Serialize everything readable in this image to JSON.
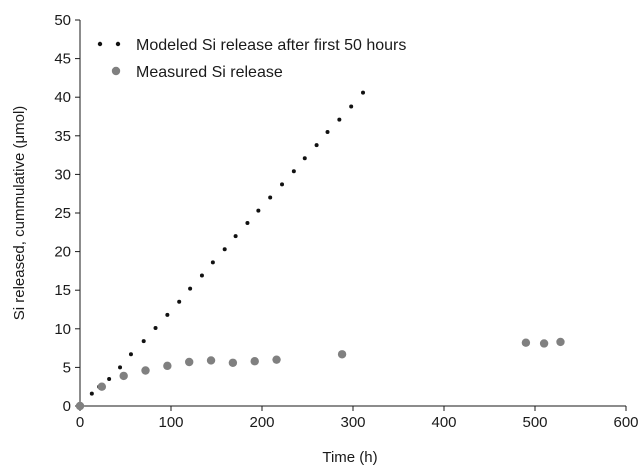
{
  "chart_data": {
    "type": "scatter",
    "title": "",
    "xlabel": "Time (h)",
    "ylabel": "Si released, cummulative (μmol)",
    "xlim": [
      0,
      600
    ],
    "ylim": [
      0,
      50
    ],
    "x_ticks": [
      "0",
      "100",
      "200",
      "300",
      "400",
      "500",
      "600"
    ],
    "y_ticks": [
      "0",
      "5",
      "10",
      "15",
      "20",
      "25",
      "30",
      "35",
      "40",
      "45",
      "50"
    ],
    "grid": false,
    "legend_position": "top-left",
    "series": [
      {
        "name": "Modeled Si release after first 50 hours",
        "marker": "small-dot",
        "color": "#111111",
        "x": [
          13,
          21,
          32,
          44,
          56,
          70,
          83,
          96,
          109,
          121,
          134,
          146,
          159,
          171,
          184,
          196,
          209,
          222,
          235,
          247,
          260,
          272,
          285,
          298,
          311
        ],
        "y": [
          1.6,
          2.5,
          3.5,
          5.0,
          6.7,
          8.4,
          10.1,
          11.8,
          13.5,
          15.2,
          16.9,
          18.6,
          20.3,
          22.0,
          23.7,
          25.3,
          27.0,
          28.7,
          30.4,
          32.1,
          33.8,
          35.5,
          37.1,
          38.8,
          40.6
        ]
      },
      {
        "name": "Measured Si release",
        "marker": "large-dot",
        "color": "#808080",
        "x": [
          0,
          24,
          48,
          72,
          96,
          120,
          144,
          168,
          192,
          216,
          288,
          490,
          510,
          528
        ],
        "y": [
          0,
          2.5,
          3.9,
          4.6,
          5.2,
          5.7,
          5.9,
          5.6,
          5.8,
          6.0,
          6.7,
          8.2,
          8.1,
          8.3
        ]
      }
    ]
  }
}
